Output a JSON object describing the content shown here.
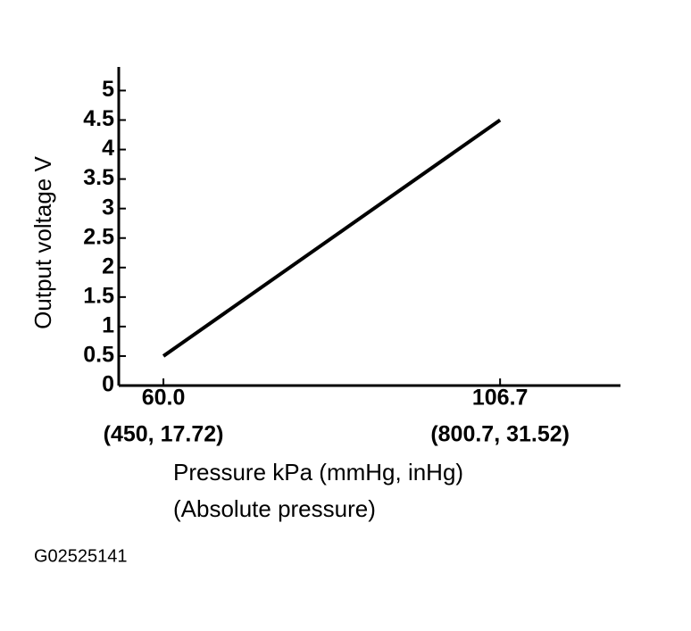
{
  "chart_data": {
    "type": "line",
    "ylabel": "Output voltage V",
    "xlabel": [
      "Pressure kPa (mmHg, inHg)",
      "(Absolute pressure)"
    ],
    "figure_id": "G02525141",
    "x": [
      60,
      106.7
    ],
    "series": [
      {
        "color": "#000000",
        "values": [
          0.5,
          4.5
        ]
      }
    ],
    "xlim": [
      53.8,
      123.4
    ],
    "ylim": [
      0,
      5.4
    ],
    "xticks": [
      {
        "value": 60,
        "label": "60.0"
      },
      {
        "value": 106.7,
        "label": "106.7"
      }
    ],
    "xtick_sublabels": [
      "(450, 17.72)",
      "(800.7, 31.52)"
    ],
    "yticks": [
      0,
      0.5,
      1,
      1.5,
      2,
      2.5,
      3,
      3.5,
      4,
      4.5,
      5
    ],
    "grid": false
  }
}
